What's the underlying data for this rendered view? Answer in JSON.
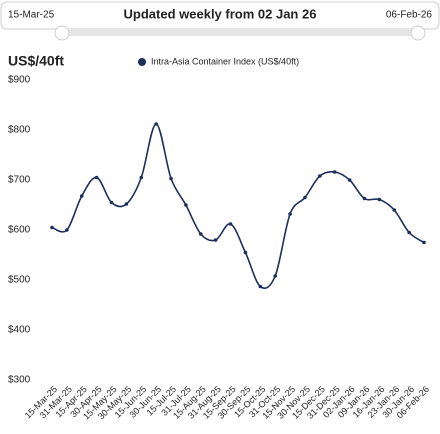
{
  "slider": {
    "start": "15-Mar-25",
    "caption": "Updated weekly from 02 Jan 26",
    "end": "06-Feb-26"
  },
  "chart_data": {
    "type": "line",
    "y_label": "US$/40ft",
    "categories": [
      "15-Mar-25",
      "31-Mar-25",
      "15-Apr-25",
      "30-Apr-25",
      "15-May-25",
      "30-May-25",
      "15-Jun-25",
      "30-Jun-25",
      "15-Jul-25",
      "31-Jul-25",
      "15-Aug-25",
      "31-Aug-25",
      "15-Sep-25",
      "30-Sep-25",
      "15-Oct-25",
      "31-Oct-25",
      "15-Nov-25",
      "30-Nov-25",
      "15-Dec-25",
      "31-Dec-25",
      "02-Jan-26",
      "09-Jan-26",
      "16-Jan-26",
      "23-Jan-26",
      "30-Jan-26",
      "06-Feb-26"
    ],
    "series": [
      {
        "name": "Intra-Asia Container Index (US$/40ft)",
        "color": "#1c2f5c",
        "values": [
          605,
          600,
          668,
          705,
          655,
          652,
          705,
          812,
          703,
          650,
          592,
          580,
          612,
          555,
          487,
          508,
          632,
          665,
          708,
          716,
          700,
          663,
          661,
          640,
          595,
          575
        ]
      }
    ],
    "ylim": [
      300,
      900
    ],
    "yticks": [
      {
        "value": 300,
        "label": "$300"
      },
      {
        "value": 400,
        "label": "$400"
      },
      {
        "value": 500,
        "label": "$500"
      },
      {
        "value": 600,
        "label": "$600"
      },
      {
        "value": 700,
        "label": "$700"
      },
      {
        "value": 800,
        "label": "$800"
      },
      {
        "value": 900,
        "label": "$900"
      }
    ],
    "grid": false,
    "legend": "top"
  }
}
